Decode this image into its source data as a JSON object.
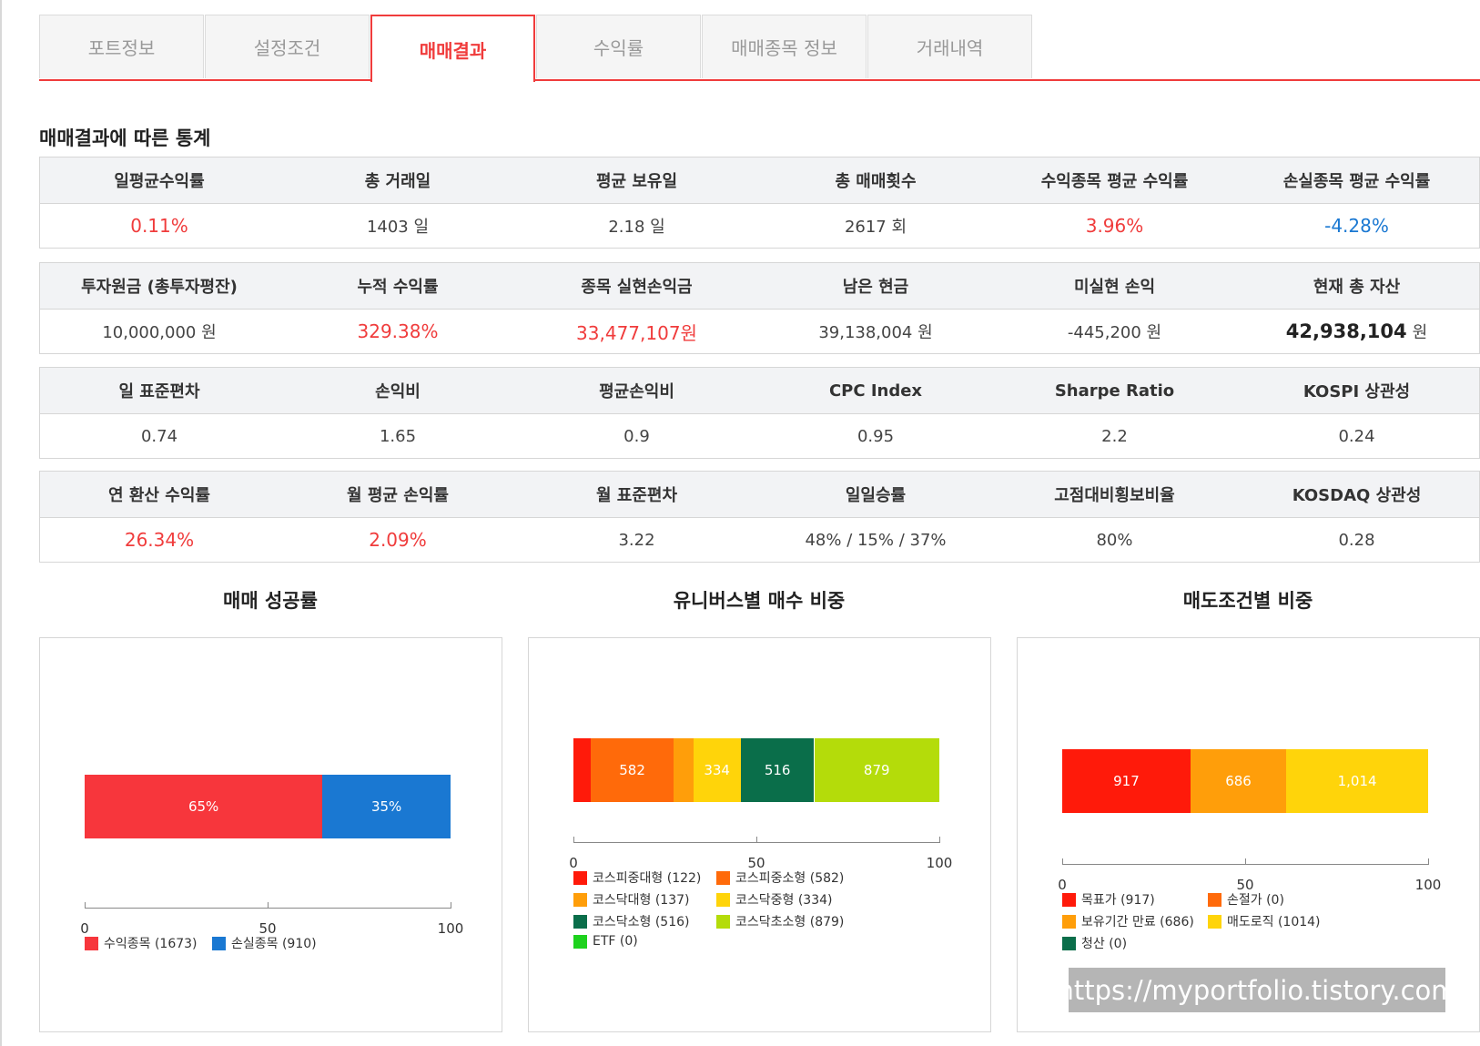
{
  "tabs": [
    "포트정보",
    "설정조건",
    "매매결과",
    "수익률",
    "매매종목 정보",
    "거래내역"
  ],
  "section_title": "매매결과에 따른 통계",
  "stats": [
    {
      "headers": [
        "일평균수익률",
        "총 거래일",
        "평균 보유일",
        "총 매매횟수",
        "수익종목 평균 수익률",
        "손실종목 평균 수익률"
      ],
      "values": [
        "0.11%",
        "1403 일",
        "2.18 일",
        "2617 회",
        "3.96%",
        "-4.28%"
      ]
    },
    {
      "headers": [
        "투자원금 (총투자평잔)",
        "누적 수익률",
        "종목 실현손익금",
        "남은 현금",
        "미실현 손익",
        "현재 총 자산"
      ],
      "values": [
        "10,000,000 원",
        "329.38%",
        "33,477,107원",
        "39,138,004 원",
        "-445,200 원",
        "42,938,104"
      ],
      "total_asset_unit": "원"
    },
    {
      "headers": [
        "일 표준편차",
        "손익비",
        "평균손익비",
        "CPC Index",
        "Sharpe Ratio",
        "KOSPI 상관성"
      ],
      "values": [
        "0.74",
        "1.65",
        "0.9",
        "0.95",
        "2.2",
        "0.24"
      ]
    },
    {
      "headers": [
        "연 환산 수익률",
        "월 평균 손익률",
        "월 표준편차",
        "일일승률",
        "고점대비횡보비율",
        "KOSDAQ 상관성"
      ],
      "values": [
        "26.34%",
        "2.09%",
        "3.22",
        "48% / 15% / 37%",
        "80%",
        "0.28"
      ]
    }
  ],
  "colors": {
    "accent": "#f03c3c",
    "positive": "#f03c3c",
    "negative": "#1a78d2"
  },
  "chart_data": [
    {
      "type": "bar",
      "orientation": "horizontal-stacked-percent",
      "title": "매매 성공률",
      "xlim": [
        0,
        100
      ],
      "x_ticks": [
        "0",
        "50",
        "100"
      ],
      "series": [
        {
          "name": "수익종목",
          "value": 65,
          "count": 1673,
          "label": "65%",
          "legend": "수익종목 (1673)",
          "color": "#f7363c"
        },
        {
          "name": "손실종목",
          "value": 35,
          "count": 910,
          "label": "35%",
          "legend": "손실종목 (910)",
          "color": "#1a78d2"
        }
      ]
    },
    {
      "type": "bar",
      "orientation": "horizontal-stacked-percent",
      "title": "유니버스별 매수 비중",
      "xlim": [
        0,
        100
      ],
      "x_ticks": [
        "0",
        "50",
        "100"
      ],
      "series": [
        {
          "name": "코스피중대형",
          "value": 122,
          "label": "",
          "legend": "코스피중대형 (122)",
          "color": "#ff1a0a"
        },
        {
          "name": "코스피중소형",
          "value": 582,
          "label": "582",
          "legend": "코스피중소형 (582)",
          "color": "#ff6a0a"
        },
        {
          "name": "코스닥대형",
          "value": 137,
          "label": "",
          "legend": "코스닥대형 (137)",
          "color": "#ff9e0a"
        },
        {
          "name": "코스닥중형",
          "value": 334,
          "label": "334",
          "legend": "코스닥중형 (334)",
          "color": "#ffd40a"
        },
        {
          "name": "코스닥소형",
          "value": 516,
          "label": "516",
          "legend": "코스닥소형 (516)",
          "color": "#0a6e4a"
        },
        {
          "name": "코스닥초소형",
          "value": 879,
          "label": "879",
          "legend": "코스닥초소형 (879)",
          "color": "#b4dc0a"
        },
        {
          "name": "ETF",
          "value": 0,
          "label": "",
          "legend": "ETF (0)",
          "color": "#1ed21e"
        }
      ]
    },
    {
      "type": "bar",
      "orientation": "horizontal-stacked-percent",
      "title": "매도조건별 비중",
      "xlim": [
        0,
        100
      ],
      "x_ticks": [
        "0",
        "50",
        "100"
      ],
      "series": [
        {
          "name": "목표가",
          "value": 917,
          "label": "917",
          "legend": "목표가 (917)",
          "color": "#ff1a0a"
        },
        {
          "name": "손절가",
          "value": 0,
          "label": "",
          "legend": "손절가 (0)",
          "color": "#ff6a0a"
        },
        {
          "name": "보유기간 만료",
          "value": 686,
          "label": "686",
          "legend": "보유기간 만료 (686)",
          "color": "#ff9e0a"
        },
        {
          "name": "매도로직",
          "value": 1014,
          "label": "1,014",
          "legend": "매도로직 (1014)",
          "color": "#ffd40a"
        },
        {
          "name": "청산",
          "value": 0,
          "label": "",
          "legend": "청산 (0)",
          "color": "#0a6e4a"
        }
      ]
    }
  ],
  "watermark": "https://myportfolio.tistory.com"
}
